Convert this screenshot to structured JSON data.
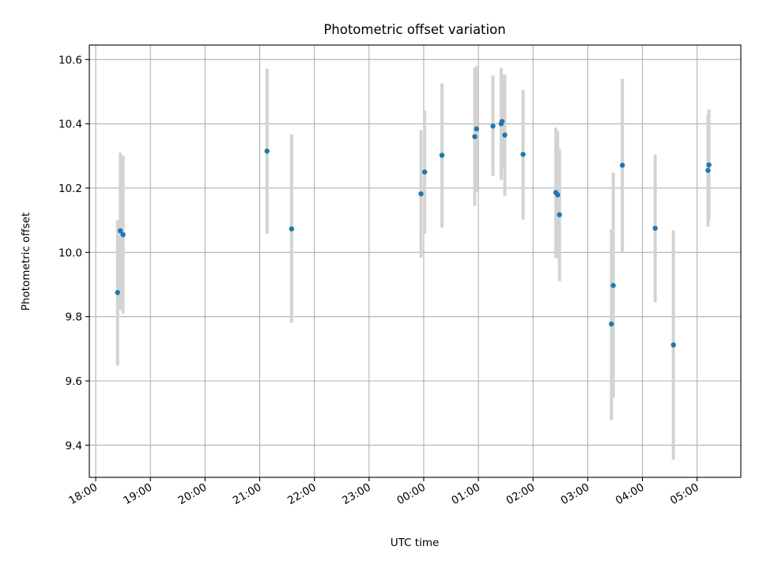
{
  "chart_data": {
    "type": "scatter",
    "title": "Photometric offset variation",
    "xlabel": "UTC time",
    "ylabel": "Photometric offset",
    "x_axis_kind": "time",
    "x_ticks": [
      "18:00",
      "19:00",
      "20:00",
      "21:00",
      "22:00",
      "23:00",
      "00:00",
      "01:00",
      "02:00",
      "03:00",
      "04:00",
      "05:00"
    ],
    "y_ticks": [
      "9.4",
      "9.6",
      "9.8",
      "10.0",
      "10.2",
      "10.4",
      "10.6"
    ],
    "xlim": [
      "17:53",
      "05:48"
    ],
    "ylim": [
      9.3,
      10.645
    ],
    "grid": true,
    "legend": "none",
    "colors": {
      "marker": "#1f77b4",
      "errorbar": "#d3d3d3"
    },
    "series": [
      {
        "points": [
          {
            "t": "18:24",
            "y": 9.875,
            "ylo": 9.648,
            "yhi": 10.1
          },
          {
            "t": "18:27",
            "y": 10.067,
            "ylo": 9.82,
            "yhi": 10.31
          },
          {
            "t": "18:30",
            "y": 10.055,
            "ylo": 9.81,
            "yhi": 10.3
          },
          {
            "t": "21:08",
            "y": 10.315,
            "ylo": 10.058,
            "yhi": 10.572
          },
          {
            "t": "21:35",
            "y": 10.073,
            "ylo": 9.781,
            "yhi": 10.367
          },
          {
            "t": "23:57",
            "y": 10.182,
            "ylo": 9.984,
            "yhi": 10.38
          },
          {
            "t": "00:01",
            "y": 10.25,
            "ylo": 10.058,
            "yhi": 10.441
          },
          {
            "t": "00:20",
            "y": 10.302,
            "ylo": 10.077,
            "yhi": 10.525
          },
          {
            "t": "00:56",
            "y": 10.36,
            "ylo": 10.145,
            "yhi": 10.575
          },
          {
            "t": "00:58",
            "y": 10.384,
            "ylo": 10.188,
            "yhi": 10.58
          },
          {
            "t": "01:16",
            "y": 10.393,
            "ylo": 10.238,
            "yhi": 10.55
          },
          {
            "t": "01:25",
            "y": 10.4,
            "ylo": 10.226,
            "yhi": 10.574
          },
          {
            "t": "01:26",
            "y": 10.407,
            "ylo": 10.26,
            "yhi": 10.554
          },
          {
            "t": "01:29",
            "y": 10.365,
            "ylo": 10.175,
            "yhi": 10.553
          },
          {
            "t": "01:49",
            "y": 10.305,
            "ylo": 10.102,
            "yhi": 10.505
          },
          {
            "t": "02:25",
            "y": 10.186,
            "ylo": 9.983,
            "yhi": 10.388
          },
          {
            "t": "02:27",
            "y": 10.179,
            "ylo": 9.981,
            "yhi": 10.377
          },
          {
            "t": "02:29",
            "y": 10.117,
            "ylo": 9.91,
            "yhi": 10.322
          },
          {
            "t": "03:26",
            "y": 9.777,
            "ylo": 9.478,
            "yhi": 10.072
          },
          {
            "t": "03:28",
            "y": 9.897,
            "ylo": 9.547,
            "yhi": 10.248
          },
          {
            "t": "03:38",
            "y": 10.271,
            "ylo": 10.0,
            "yhi": 10.54
          },
          {
            "t": "04:14",
            "y": 10.075,
            "ylo": 9.845,
            "yhi": 10.305
          },
          {
            "t": "04:34",
            "y": 9.712,
            "ylo": 9.355,
            "yhi": 10.068
          },
          {
            "t": "05:12",
            "y": 10.255,
            "ylo": 10.08,
            "yhi": 10.43
          },
          {
            "t": "05:13",
            "y": 10.272,
            "ylo": 10.1,
            "yhi": 10.444
          }
        ]
      }
    ]
  }
}
